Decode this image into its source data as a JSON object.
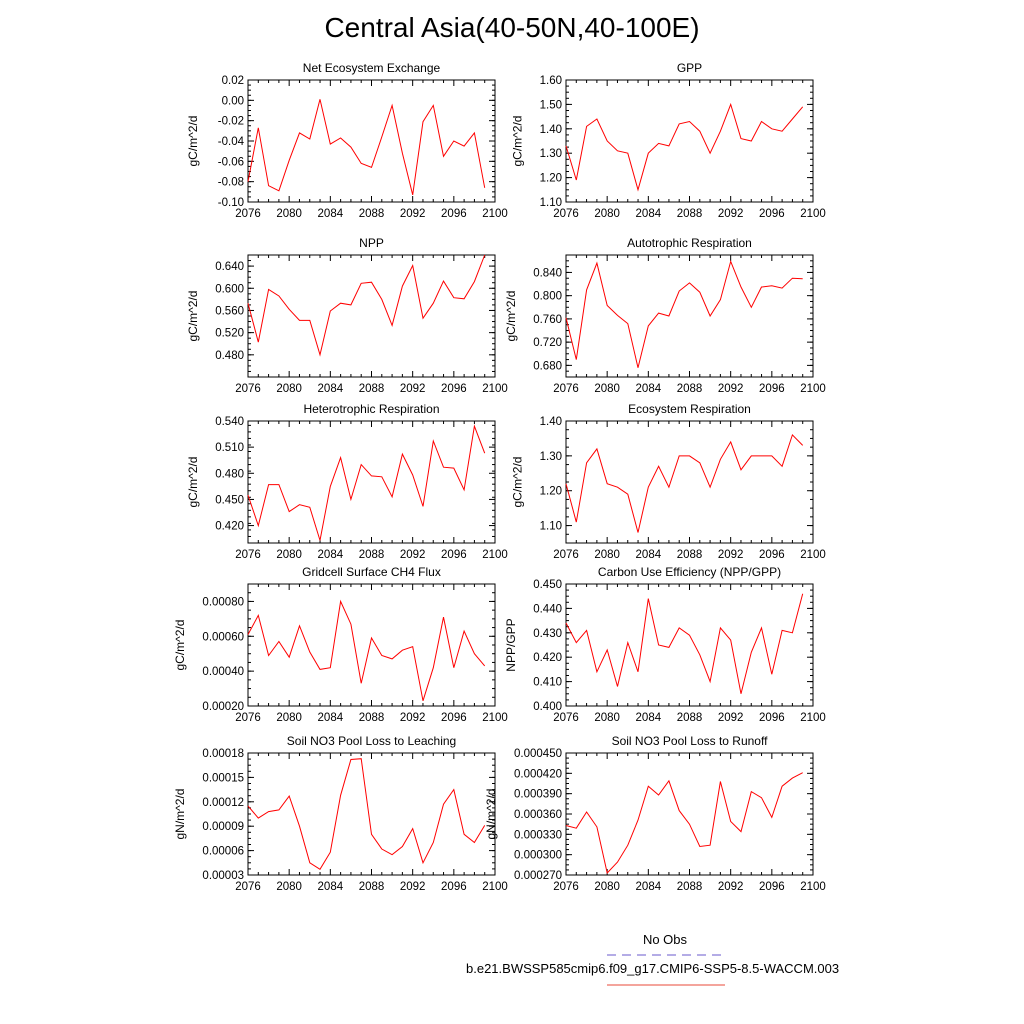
{
  "title": "Central Asia(40-50N,40-100E)",
  "legend": {
    "entries": [
      {
        "label": "No Obs",
        "color": "#6a5acd",
        "style": "dashed"
      },
      {
        "label": "b.e21.BWSSP585cmip6.f09_g17.CMIP6-SSP5-8.5-WACCM.003",
        "color": "#e8483a",
        "style": "solid"
      }
    ]
  },
  "chart_data": [
    {
      "type": "line",
      "title": "Net Ecosystem Exchange",
      "ylabel": "gC/m^2/d",
      "xlim": [
        2076,
        2100
      ],
      "ylim": [
        -0.1,
        0.02
      ],
      "xticks": [
        "2076",
        "2080",
        "2084",
        "2088",
        "2092",
        "2096",
        "2100"
      ],
      "yticks": [
        "-0.10",
        "-0.08",
        "-0.06",
        "-0.04",
        "-0.02",
        "0.00",
        "0.02"
      ],
      "x": [
        2076,
        2077,
        2078,
        2079,
        2080,
        2081,
        2082,
        2083,
        2084,
        2085,
        2086,
        2087,
        2088,
        2089,
        2090,
        2091,
        2092,
        2093,
        2094,
        2095,
        2096,
        2097,
        2098,
        2099
      ],
      "values": [
        -0.08,
        -0.027,
        -0.084,
        -0.089,
        -0.059,
        -0.032,
        -0.038,
        0.001,
        -0.043,
        -0.037,
        -0.046,
        -0.062,
        -0.066,
        -0.036,
        -0.005,
        -0.052,
        -0.093,
        -0.021,
        -0.005,
        -0.055,
        -0.04,
        -0.045,
        -0.032,
        -0.086
      ]
    },
    {
      "type": "line",
      "title": "GPP",
      "ylabel": "gC/m^2/d",
      "xlim": [
        2076,
        2100
      ],
      "ylim": [
        1.1,
        1.6
      ],
      "xticks": [
        "2076",
        "2080",
        "2084",
        "2088",
        "2092",
        "2096",
        "2100"
      ],
      "yticks": [
        "1.10",
        "1.20",
        "1.30",
        "1.40",
        "1.50",
        "1.60"
      ],
      "x": [
        2076,
        2077,
        2078,
        2079,
        2080,
        2081,
        2082,
        2083,
        2084,
        2085,
        2086,
        2087,
        2088,
        2089,
        2090,
        2091,
        2092,
        2093,
        2094,
        2095,
        2096,
        2097,
        2098,
        2099
      ],
      "values": [
        1.33,
        1.19,
        1.41,
        1.44,
        1.35,
        1.31,
        1.3,
        1.15,
        1.3,
        1.34,
        1.33,
        1.42,
        1.43,
        1.39,
        1.3,
        1.39,
        1.5,
        1.36,
        1.35,
        1.43,
        1.4,
        1.39,
        1.44,
        1.49
      ]
    },
    {
      "type": "line",
      "title": "NPP",
      "ylabel": "gC/m^2/d",
      "xlim": [
        2076,
        2100
      ],
      "ylim": [
        0.44,
        0.66
      ],
      "xticks": [
        "2076",
        "2080",
        "2084",
        "2088",
        "2092",
        "2096",
        "2100"
      ],
      "yticks": [
        "0.480",
        "0.520",
        "0.560",
        "0.600",
        "0.640"
      ],
      "x": [
        2076,
        2077,
        2078,
        2079,
        2080,
        2081,
        2082,
        2083,
        2084,
        2085,
        2086,
        2087,
        2088,
        2089,
        2090,
        2091,
        2092,
        2093,
        2094,
        2095,
        2096,
        2097,
        2098,
        2099
      ],
      "values": [
        0.573,
        0.503,
        0.598,
        0.586,
        0.562,
        0.542,
        0.542,
        0.48,
        0.559,
        0.573,
        0.57,
        0.609,
        0.611,
        0.58,
        0.533,
        0.604,
        0.641,
        0.546,
        0.573,
        0.613,
        0.583,
        0.581,
        0.612,
        0.66
      ]
    },
    {
      "type": "line",
      "title": "Autotrophic Respiration",
      "ylabel": "gC/m^2/d",
      "xlim": [
        2076,
        2100
      ],
      "ylim": [
        0.66,
        0.87
      ],
      "xticks": [
        "2076",
        "2080",
        "2084",
        "2088",
        "2092",
        "2096",
        "2100"
      ],
      "yticks": [
        "0.680",
        "0.720",
        "0.760",
        "0.800",
        "0.840"
      ],
      "x": [
        2076,
        2077,
        2078,
        2079,
        2080,
        2081,
        2082,
        2083,
        2084,
        2085,
        2086,
        2087,
        2088,
        2089,
        2090,
        2091,
        2092,
        2093,
        2094,
        2095,
        2096,
        2097,
        2098,
        2099
      ],
      "values": [
        0.762,
        0.69,
        0.81,
        0.856,
        0.783,
        0.766,
        0.752,
        0.676,
        0.748,
        0.77,
        0.765,
        0.808,
        0.822,
        0.806,
        0.765,
        0.793,
        0.859,
        0.815,
        0.78,
        0.815,
        0.817,
        0.813,
        0.83,
        0.829
      ]
    },
    {
      "type": "line",
      "title": "Heterotrophic Respiration",
      "ylabel": "gC/m^2/d",
      "xlim": [
        2076,
        2100
      ],
      "ylim": [
        0.4,
        0.54
      ],
      "xticks": [
        "2076",
        "2080",
        "2084",
        "2088",
        "2092",
        "2096",
        "2100"
      ],
      "yticks": [
        "0.420",
        "0.450",
        "0.480",
        "0.510",
        "0.540"
      ],
      "x": [
        2076,
        2077,
        2078,
        2079,
        2080,
        2081,
        2082,
        2083,
        2084,
        2085,
        2086,
        2087,
        2088,
        2089,
        2090,
        2091,
        2092,
        2093,
        2094,
        2095,
        2096,
        2097,
        2098,
        2099
      ],
      "values": [
        0.455,
        0.42,
        0.467,
        0.467,
        0.436,
        0.444,
        0.441,
        0.403,
        0.465,
        0.498,
        0.45,
        0.49,
        0.477,
        0.476,
        0.453,
        0.502,
        0.478,
        0.442,
        0.517,
        0.487,
        0.486,
        0.461,
        0.534,
        0.503
      ]
    },
    {
      "type": "line",
      "title": "Ecosystem Respiration",
      "ylabel": "gC/m^2/d",
      "xlim": [
        2076,
        2100
      ],
      "ylim": [
        1.05,
        1.4
      ],
      "xticks": [
        "2076",
        "2080",
        "2084",
        "2088",
        "2092",
        "2096",
        "2100"
      ],
      "yticks": [
        "1.10",
        "1.20",
        "1.30",
        "1.40"
      ],
      "x": [
        2076,
        2077,
        2078,
        2079,
        2080,
        2081,
        2082,
        2083,
        2084,
        2085,
        2086,
        2087,
        2088,
        2089,
        2090,
        2091,
        2092,
        2093,
        2094,
        2095,
        2096,
        2097,
        2098,
        2099
      ],
      "values": [
        1.22,
        1.11,
        1.28,
        1.32,
        1.22,
        1.21,
        1.19,
        1.08,
        1.21,
        1.27,
        1.21,
        1.3,
        1.3,
        1.28,
        1.21,
        1.29,
        1.34,
        1.26,
        1.3,
        1.3,
        1.3,
        1.27,
        1.36,
        1.33
      ]
    },
    {
      "type": "line",
      "title": "Gridcell Surface CH4 Flux",
      "ylabel": "gC/m^2/d",
      "xlim": [
        2076,
        2100
      ],
      "ylim": [
        0.0002,
        0.0009
      ],
      "xticks": [
        "2076",
        "2080",
        "2084",
        "2088",
        "2092",
        "2096",
        "2100"
      ],
      "yticks": [
        "0.00020",
        "0.00040",
        "0.00060",
        "0.00080"
      ],
      "x": [
        2076,
        2077,
        2078,
        2079,
        2080,
        2081,
        2082,
        2083,
        2084,
        2085,
        2086,
        2087,
        2088,
        2089,
        2090,
        2091,
        2092,
        2093,
        2094,
        2095,
        2096,
        2097,
        2098,
        2099
      ],
      "values": [
        0.00061,
        0.00072,
        0.00049,
        0.00057,
        0.00048,
        0.00066,
        0.00051,
        0.00041,
        0.00042,
        0.0008,
        0.00067,
        0.00033,
        0.00059,
        0.00049,
        0.00047,
        0.00052,
        0.00054,
        0.00023,
        0.00042,
        0.00071,
        0.00042,
        0.00063,
        0.0005,
        0.00043
      ]
    },
    {
      "type": "line",
      "title": "Carbon Use Efficiency (NPP/GPP)",
      "ylabel": "NPP/GPP",
      "xlim": [
        2076,
        2100
      ],
      "ylim": [
        0.4,
        0.45
      ],
      "xticks": [
        "2076",
        "2080",
        "2084",
        "2088",
        "2092",
        "2096",
        "2100"
      ],
      "yticks": [
        "0.400",
        "0.410",
        "0.420",
        "0.430",
        "0.440",
        "0.450"
      ],
      "x": [
        2076,
        2077,
        2078,
        2079,
        2080,
        2081,
        2082,
        2083,
        2084,
        2085,
        2086,
        2087,
        2088,
        2089,
        2090,
        2091,
        2092,
        2093,
        2094,
        2095,
        2096,
        2097,
        2098,
        2099
      ],
      "values": [
        0.434,
        0.426,
        0.431,
        0.414,
        0.423,
        0.408,
        0.426,
        0.414,
        0.444,
        0.425,
        0.424,
        0.432,
        0.429,
        0.421,
        0.41,
        0.432,
        0.427,
        0.405,
        0.422,
        0.432,
        0.413,
        0.431,
        0.43,
        0.446
      ]
    },
    {
      "type": "line",
      "title": "Soil NO3 Pool Loss to Leaching",
      "ylabel": "gN/m^2/d",
      "xlim": [
        2076,
        2100
      ],
      "ylim": [
        3e-05,
        0.00018
      ],
      "xticks": [
        "2076",
        "2080",
        "2084",
        "2088",
        "2092",
        "2096",
        "2100"
      ],
      "yticks": [
        "0.00003",
        "0.00006",
        "0.00009",
        "0.00012",
        "0.00015",
        "0.00018"
      ],
      "x": [
        2076,
        2077,
        2078,
        2079,
        2080,
        2081,
        2082,
        2083,
        2084,
        2085,
        2086,
        2087,
        2088,
        2089,
        2090,
        2091,
        2092,
        2093,
        2094,
        2095,
        2096,
        2097,
        2098,
        2099
      ],
      "values": [
        0.000115,
        0.0001,
        0.000108,
        0.00011,
        0.000127,
        9e-05,
        4.5e-05,
        3.7e-05,
        5.8e-05,
        0.000128,
        0.000172,
        0.000173,
        8e-05,
        6.2e-05,
        5.5e-05,
        6.5e-05,
        8.7e-05,
        4.5e-05,
        7e-05,
        0.000117,
        0.000135,
        8e-05,
        7e-05,
        9.1e-05
      ]
    },
    {
      "type": "line",
      "title": "Soil NO3 Pool Loss to Runoff",
      "ylabel": "gN/m^2/d",
      "xlim": [
        2076,
        2100
      ],
      "ylim": [
        0.00027,
        0.00045
      ],
      "xticks": [
        "2076",
        "2080",
        "2084",
        "2088",
        "2092",
        "2096",
        "2100"
      ],
      "yticks": [
        "0.000270",
        "0.000300",
        "0.000330",
        "0.000360",
        "0.000390",
        "0.000420",
        "0.000450"
      ],
      "x": [
        2076,
        2077,
        2078,
        2079,
        2080,
        2081,
        2082,
        2083,
        2084,
        2085,
        2086,
        2087,
        2088,
        2089,
        2090,
        2091,
        2092,
        2093,
        2094,
        2095,
        2096,
        2097,
        2098,
        2099
      ],
      "values": [
        0.000343,
        0.000339,
        0.000363,
        0.000341,
        0.000273,
        0.000289,
        0.000314,
        0.000351,
        0.000401,
        0.000388,
        0.000409,
        0.000365,
        0.000345,
        0.000312,
        0.000314,
        0.000408,
        0.000349,
        0.000334,
        0.000393,
        0.000384,
        0.000355,
        0.000401,
        0.000413,
        0.000421
      ]
    }
  ]
}
